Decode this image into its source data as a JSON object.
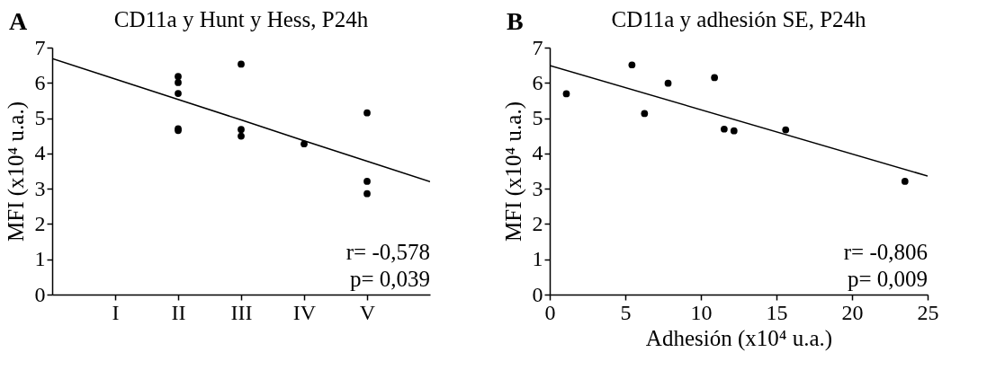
{
  "chart_data": [
    {
      "type": "scatter",
      "title": "CD11a y Hunt y Hess, P24h",
      "ylabel": "MFI (x10⁴ u.a.)",
      "categories": [
        null,
        "I",
        "II",
        "III",
        "IV",
        "V",
        null
      ],
      "ylim": [
        0,
        7
      ],
      "yticks": [
        0,
        1,
        2,
        3,
        4,
        5,
        6,
        7
      ],
      "grid": false,
      "annotations": [
        "A",
        "r= -0,578",
        "p= 0,039"
      ],
      "series": [
        {
          "color": "#000000",
          "marker": "circle",
          "x": [
            "II",
            "II",
            "II",
            "II",
            "II",
            "III",
            "III",
            "III",
            "IV",
            "V",
            "V",
            "V"
          ],
          "values": [
            6.18,
            6.01,
            5.7,
            4.7,
            4.65,
            6.53,
            4.68,
            4.49,
            4.27,
            5.15,
            3.21,
            2.86
          ]
        },
        {
          "type": "line",
          "color": "#000000",
          "values": [
            6.69,
            6.11,
            5.53,
            4.95,
            4.36,
            3.78,
            3.2
          ]
        }
      ]
    },
    {
      "type": "scatter",
      "title": "CD11a y adhesión SE, P24h",
      "xlabel": "Adhesión (x10⁴ u.a.)",
      "ylabel": "MFI (x10⁴ u.a.)",
      "xlim": [
        0,
        25
      ],
      "xticks": [
        0,
        5,
        10,
        15,
        20,
        25
      ],
      "ylim": [
        0,
        7
      ],
      "yticks": [
        0,
        1,
        2,
        3,
        4,
        5,
        6,
        7
      ],
      "grid": false,
      "annotations": [
        "B",
        "r= -0,806",
        "p= 0,009"
      ],
      "series": [
        {
          "color": "#000000",
          "marker": "circle",
          "x": [
            1.1,
            5.44,
            6.27,
            7.83,
            10.9,
            11.54,
            12.19,
            15.61,
            23.5
          ],
          "values": [
            5.69,
            6.51,
            5.13,
            5.99,
            6.15,
            4.69,
            4.64,
            4.67,
            3.21
          ]
        },
        {
          "type": "line",
          "color": "#000000",
          "x": [
            0,
            25
          ],
          "values": [
            6.49,
            3.36
          ]
        }
      ]
    }
  ]
}
